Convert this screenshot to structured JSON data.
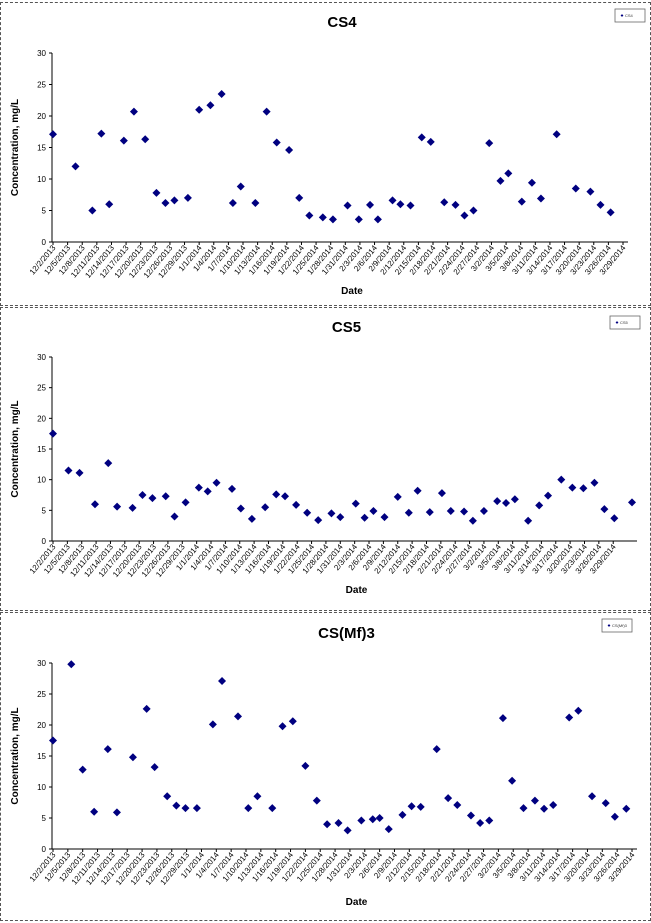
{
  "chart_data": [
    {
      "type": "scatter",
      "title": "CS4",
      "xlabel": "Date",
      "ylabel": "Concentration, mg/L",
      "ylim": [
        0,
        30
      ],
      "yticks": [
        "0",
        "5",
        "10",
        "15",
        "20",
        "25",
        "30"
      ],
      "x_tick_labels": [
        "12/2/2013",
        "12/5/2013",
        "12/8/2013",
        "12/11/2013",
        "12/14/2013",
        "12/17/2013",
        "12/20/2013",
        "12/23/2013",
        "12/26/2013",
        "12/29/2013",
        "1/1/2014",
        "1/4/2014",
        "1/7/2014",
        "1/10/2014",
        "1/13/2014",
        "1/16/2014",
        "1/19/2014",
        "1/22/2014",
        "1/25/2014",
        "1/28/2014",
        "1/31/2014",
        "2/3/2014",
        "2/6/2014",
        "2/9/2014",
        "2/12/2014",
        "2/15/2014",
        "2/18/2014",
        "2/21/2014",
        "2/24/2014",
        "2/27/2014",
        "3/2/2014",
        "3/5/2014",
        "3/8/2014",
        "3/11/2014",
        "3/14/2014",
        "3/17/2014",
        "3/20/2014",
        "3/23/2014",
        "3/26/2014",
        "3/29/2014"
      ],
      "legend": "CS4",
      "legend_position": "top-right",
      "grid": false,
      "marker_color": "#000080",
      "series": [
        {
          "name": "CS4",
          "points": [
            [
              0,
              17.1
            ],
            [
              2,
              12
            ],
            [
              3.5,
              5
            ],
            [
              4.3,
              17.2
            ],
            [
              5,
              6
            ],
            [
              6.3,
              16.1
            ],
            [
              7.2,
              20.7
            ],
            [
              8.2,
              16.3
            ],
            [
              9.2,
              7.8
            ],
            [
              10,
              6.2
            ],
            [
              10.8,
              6.6
            ],
            [
              12,
              7
            ],
            [
              13,
              21
            ],
            [
              14,
              21.7
            ],
            [
              15,
              23.5
            ],
            [
              16,
              6.2
            ],
            [
              16.7,
              8.8
            ],
            [
              18,
              6.2
            ],
            [
              19,
              20.7
            ],
            [
              19.9,
              15.8
            ],
            [
              21,
              14.6
            ],
            [
              21.9,
              7
            ],
            [
              22.8,
              4.2
            ],
            [
              24,
              3.9
            ],
            [
              24.9,
              3.6
            ],
            [
              26.2,
              5.8
            ],
            [
              27.2,
              3.6
            ],
            [
              28.2,
              5.9
            ],
            [
              28.9,
              3.6
            ],
            [
              30.2,
              6.6
            ],
            [
              30.9,
              6
            ],
            [
              31.8,
              5.8
            ],
            [
              32.8,
              16.6
            ],
            [
              33.6,
              15.9
            ],
            [
              34.8,
              6.3
            ],
            [
              35.8,
              5.9
            ],
            [
              36.6,
              4.2
            ],
            [
              37.4,
              5
            ],
            [
              38.8,
              15.7
            ],
            [
              39.8,
              9.7
            ],
            [
              40.5,
              10.9
            ],
            [
              41.7,
              6.4
            ],
            [
              42.6,
              9.4
            ],
            [
              43.4,
              6.9
            ],
            [
              44.8,
              17.1
            ],
            [
              46.5,
              8.5
            ],
            [
              47.8,
              8
            ],
            [
              48.7,
              5.9
            ],
            [
              49.6,
              4.7
            ]
          ]
        }
      ]
    },
    {
      "type": "scatter",
      "title": "CS5",
      "xlabel": "Date",
      "ylabel": "Concentration, mg/L",
      "ylim": [
        0,
        30
      ],
      "yticks": [
        "0",
        "5",
        "10",
        "15",
        "20",
        "25",
        "30"
      ],
      "x_tick_labels": [
        "12/2/2013",
        "12/5/2013",
        "12/8/2013",
        "12/11/2013",
        "12/14/2013",
        "12/17/2013",
        "12/20/2013",
        "12/23/2013",
        "12/26/2013",
        "12/29/2013",
        "1/1/2014",
        "1/4/2014",
        "1/7/2014",
        "1/10/2014",
        "1/13/2014",
        "1/16/2014",
        "1/19/2014",
        "1/22/2014",
        "1/25/2014",
        "1/28/2014",
        "1/31/2014",
        "2/3/2014",
        "2/6/2014",
        "2/9/2014",
        "2/12/2014",
        "2/15/2014",
        "2/18/2014",
        "2/21/2014",
        "2/24/2014",
        "2/27/2014",
        "3/2/2014",
        "3/5/2014",
        "3/8/2014",
        "3/11/2014",
        "3/14/2014",
        "3/17/2014",
        "3/20/2014",
        "3/23/2014",
        "3/26/2014",
        "3/29/2014"
      ],
      "legend": "CS5",
      "legend_position": "top-right",
      "grid": false,
      "marker_color": "#000080",
      "series": [
        {
          "name": "CS5",
          "points": [
            [
              0,
              17.5
            ],
            [
              1.4,
              11.5
            ],
            [
              2.4,
              11.1
            ],
            [
              3.8,
              6
            ],
            [
              5,
              12.7
            ],
            [
              5.8,
              5.6
            ],
            [
              7.2,
              5.4
            ],
            [
              8.1,
              7.5
            ],
            [
              9,
              7
            ],
            [
              10.2,
              7.3
            ],
            [
              11,
              4
            ],
            [
              12,
              6.3
            ],
            [
              13.2,
              8.7
            ],
            [
              14,
              8.1
            ],
            [
              14.8,
              9.5
            ],
            [
              16.2,
              8.5
            ],
            [
              17,
              5.3
            ],
            [
              18,
              3.6
            ],
            [
              19.2,
              5.5
            ],
            [
              20.2,
              7.6
            ],
            [
              21,
              7.3
            ],
            [
              22,
              5.9
            ],
            [
              23,
              4.6
            ],
            [
              24,
              3.4
            ],
            [
              25.2,
              4.5
            ],
            [
              26,
              3.9
            ],
            [
              27.4,
              6.1
            ],
            [
              28.2,
              3.8
            ],
            [
              29,
              4.9
            ],
            [
              30,
              3.9
            ],
            [
              31.2,
              7.2
            ],
            [
              32.2,
              4.6
            ],
            [
              33,
              8.2
            ],
            [
              34.1,
              4.7
            ],
            [
              35.2,
              7.8
            ],
            [
              36,
              4.9
            ],
            [
              37.2,
              4.8
            ],
            [
              38,
              3.3
            ],
            [
              39,
              4.9
            ],
            [
              40.2,
              6.5
            ],
            [
              41,
              6.2
            ],
            [
              41.8,
              6.8
            ],
            [
              43,
              3.3
            ],
            [
              44,
              5.8
            ],
            [
              44.8,
              7.4
            ],
            [
              46,
              10
            ],
            [
              47,
              8.7
            ],
            [
              48,
              8.6
            ],
            [
              49,
              9.5
            ],
            [
              49.9,
              5.2
            ],
            [
              50.8,
              3.7
            ],
            [
              52.4,
              6.3
            ]
          ]
        }
      ]
    },
    {
      "type": "scatter",
      "title": "CS(Mf)3",
      "xlabel": "Date",
      "ylabel": "Concentration, mg/L",
      "ylim": [
        0,
        30
      ],
      "yticks": [
        "0",
        "5",
        "10",
        "15",
        "20",
        "25",
        "30"
      ],
      "x_tick_labels": [
        "12/2/2013",
        "12/5/2013",
        "12/8/2013",
        "12/11/2013",
        "12/14/2013",
        "12/17/2013",
        "12/20/2013",
        "12/23/2013",
        "12/26/2013",
        "12/29/2013",
        "1/1/2014",
        "1/4/2014",
        "1/7/2014",
        "1/10/2014",
        "1/13/2014",
        "1/16/2014",
        "1/19/2014",
        "1/22/2014",
        "1/25/2014",
        "1/28/2014",
        "1/31/2014",
        "2/3/2014",
        "2/6/2014",
        "2/9/2014",
        "2/12/2014",
        "2/15/2014",
        "2/18/2014",
        "2/21/2014",
        "2/24/2014",
        "2/27/2014",
        "3/2/2014",
        "3/5/2014",
        "3/8/2014",
        "3/11/2014",
        "3/14/2014",
        "3/17/2014",
        "3/20/2014",
        "3/23/2014",
        "3/26/2014",
        "3/29/2014"
      ],
      "legend": "CS(Mf)3",
      "legend_position": "top-right",
      "grid": false,
      "marker_color": "#000080",
      "series": [
        {
          "name": "CS(Mf)3",
          "points": [
            [
              0,
              17.5
            ],
            [
              1.6,
              29.8
            ],
            [
              2.6,
              12.8
            ],
            [
              3.6,
              6
            ],
            [
              4.8,
              16.1
            ],
            [
              5.6,
              5.9
            ],
            [
              7,
              14.8
            ],
            [
              8.2,
              22.6
            ],
            [
              8.9,
              13.2
            ],
            [
              10,
              8.5
            ],
            [
              10.8,
              7
            ],
            [
              11.6,
              6.6
            ],
            [
              12.6,
              6.6
            ],
            [
              14,
              20.1
            ],
            [
              14.8,
              27.1
            ],
            [
              16.2,
              21.4
            ],
            [
              17.1,
              6.6
            ],
            [
              17.9,
              8.5
            ],
            [
              19.2,
              6.6
            ],
            [
              20.1,
              19.8
            ],
            [
              21,
              20.6
            ],
            [
              22.1,
              13.4
            ],
            [
              23.1,
              7.8
            ],
            [
              24,
              4
            ],
            [
              25,
              4.2
            ],
            [
              25.8,
              3
            ],
            [
              27,
              4.6
            ],
            [
              28,
              4.8
            ],
            [
              28.6,
              5
            ],
            [
              29.4,
              3.2
            ],
            [
              30.6,
              5.5
            ],
            [
              31.4,
              6.9
            ],
            [
              32.2,
              6.8
            ],
            [
              33.6,
              16.1
            ],
            [
              34.6,
              8.2
            ],
            [
              35.4,
              7.1
            ],
            [
              36.6,
              5.4
            ],
            [
              37.4,
              4.2
            ],
            [
              38.2,
              4.6
            ],
            [
              39.4,
              21.1
            ],
            [
              40.2,
              11
            ],
            [
              41.2,
              6.6
            ],
            [
              42.2,
              7.8
            ],
            [
              43,
              6.5
            ],
            [
              43.8,
              7.1
            ],
            [
              45.2,
              21.2
            ],
            [
              46,
              22.3
            ],
            [
              47.2,
              8.5
            ],
            [
              48.4,
              7.4
            ],
            [
              49.2,
              5.2
            ],
            [
              50.2,
              6.5
            ]
          ]
        }
      ]
    }
  ]
}
